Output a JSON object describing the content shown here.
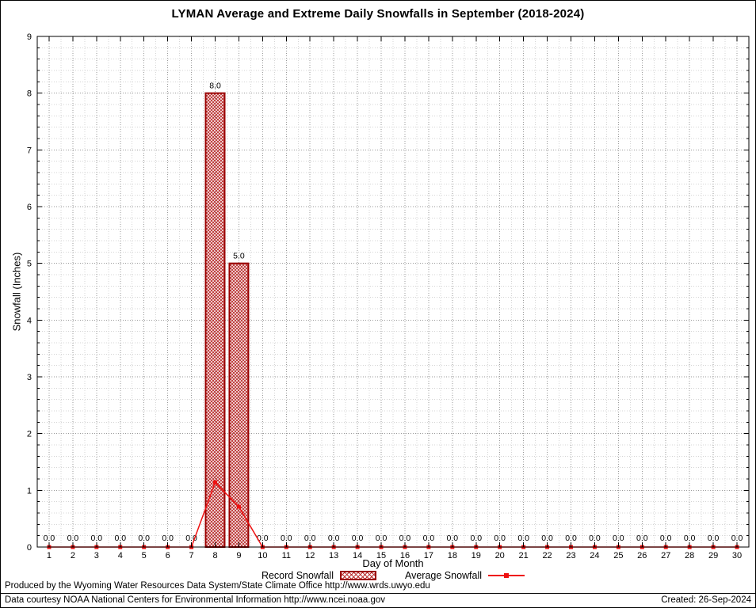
{
  "title": "LYMAN Average and Extreme Daily Snowfalls in September (2018-2024)",
  "axes": {
    "xlabel": "Day of Month",
    "ylabel": "Snowfall (Inches)"
  },
  "legend": {
    "record_label": "Record Snowfall",
    "average_label": "Average Snowfall"
  },
  "footer": {
    "produced": "Produced by the Wyoming Water Resources Data System/State Climate Office http://www.wrds.uwyo.edu",
    "courtesy": "Data courtesy NOAA National Centers for Environmental Information http://www.ncei.noaa.gov",
    "created": "Created: 26-Sep-2024"
  },
  "colors": {
    "bar_edge": "#990000",
    "bar_hatch": "#bb3333",
    "line": "#ee1111",
    "grid_major": "#999999",
    "grid_minor": "#d4d4d4",
    "axis": "#000000"
  },
  "chart_data": {
    "type": "bar",
    "title": "LYMAN Average and Extreme Daily Snowfalls in September (2018-2024)",
    "xlabel": "Day of Month",
    "ylabel": "Snowfall (Inches)",
    "ylim": [
      0,
      9
    ],
    "yticks": [
      0,
      1,
      2,
      3,
      4,
      5,
      6,
      7,
      8,
      9
    ],
    "categories": [
      1,
      2,
      3,
      4,
      5,
      6,
      7,
      8,
      9,
      10,
      11,
      12,
      13,
      14,
      15,
      16,
      17,
      18,
      19,
      20,
      21,
      22,
      23,
      24,
      25,
      26,
      27,
      28,
      29,
      30
    ],
    "grid": "dotted major and minor, on",
    "legend_position": "bottom-center",
    "series": [
      {
        "name": "Record Snowfall",
        "type": "bar",
        "style": "crosshatch dark red",
        "values": [
          0,
          0,
          0,
          0,
          0,
          0,
          0,
          8.0,
          5.0,
          0,
          0,
          0,
          0,
          0,
          0,
          0,
          0,
          0,
          0,
          0,
          0,
          0,
          0,
          0,
          0,
          0,
          0,
          0,
          0,
          0
        ]
      },
      {
        "name": "Average Snowfall",
        "type": "line",
        "style": "red line with point markers",
        "values": [
          0,
          0,
          0,
          0,
          0,
          0,
          0,
          1.14,
          0.71,
          0,
          0,
          0,
          0,
          0,
          0,
          0,
          0,
          0,
          0,
          0,
          0,
          0,
          0,
          0,
          0,
          0,
          0,
          0,
          0,
          0
        ]
      }
    ]
  }
}
